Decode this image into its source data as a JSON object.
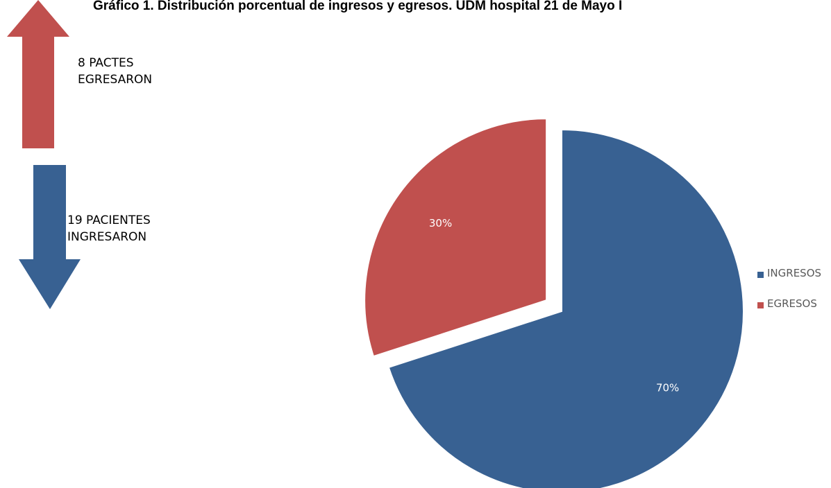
{
  "chart_data": {
    "type": "pie",
    "title": "Gráfico 1. Distribución porcentual de ingresos y egresos. UDM hospital 21 de Mayo I",
    "categories": [
      "INGRESOS",
      "EGRESOS"
    ],
    "values": [
      70,
      30
    ],
    "data_labels": [
      "70%",
      "30%"
    ],
    "exploded": "EGRESOS",
    "legend": {
      "placement": "right",
      "entries": [
        "INGRESOS",
        "EGRESOS"
      ]
    },
    "colors": {
      "INGRESOS": "#386192",
      "EGRESOS": "#C0504E"
    }
  },
  "annotations": {
    "up_arrow": {
      "lines": [
        "8 PACTES",
        "EGRESARON"
      ],
      "color": "#C0504E",
      "icon": "arrow-up-icon"
    },
    "down_arrow": {
      "lines": [
        "19 PACIENTES",
        "INGRESARON"
      ],
      "color": "#386192",
      "icon": "arrow-down-icon"
    }
  }
}
